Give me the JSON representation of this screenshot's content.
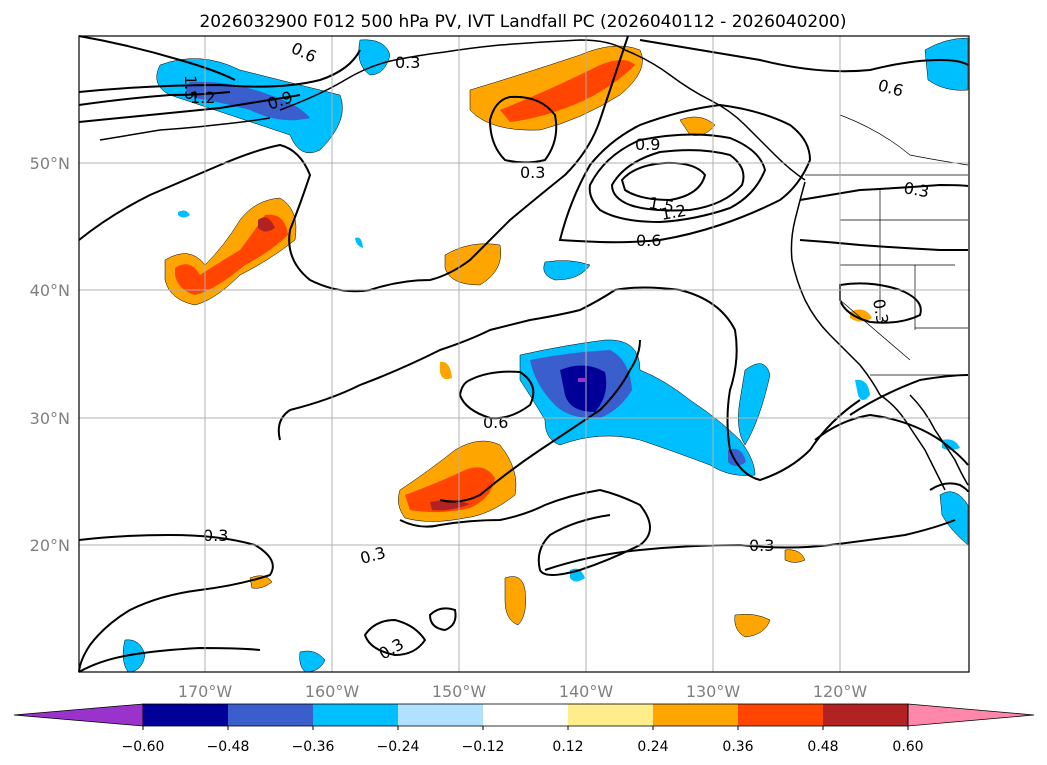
{
  "title": "2026032900 F012 500 hPa PV, IVT Landfall PC (2026040112 - 2026040200)",
  "map": {
    "lat_labels": [
      "50°N",
      "40°N",
      "30°N",
      "20°N"
    ],
    "lon_labels": [
      "170°W",
      "160°W",
      "150°W",
      "140°W",
      "130°W",
      "120°W"
    ],
    "contour_labels": [
      "0.6",
      "0.3",
      "1.5",
      "1.2",
      "0.9",
      "0.3",
      "0.9",
      "1.5",
      "1.2",
      "0.6",
      "0.6",
      "0.3",
      "0.3",
      "0.6",
      "0.3",
      "0.3",
      "0.3",
      "0.3"
    ]
  },
  "colorbar": {
    "ticks": [
      "−0.60",
      "−0.48",
      "−0.36",
      "−0.24",
      "−0.12",
      "0.12",
      "0.24",
      "0.36",
      "0.48",
      "0.60"
    ],
    "colors": [
      "#9933cc",
      "#000099",
      "#3a5fcd",
      "#00bfff",
      "#b0e2ff",
      "#ffffff",
      "#ffec8b",
      "#ffa500",
      "#ff4500",
      "#b22222",
      "#ff88aa"
    ]
  }
}
